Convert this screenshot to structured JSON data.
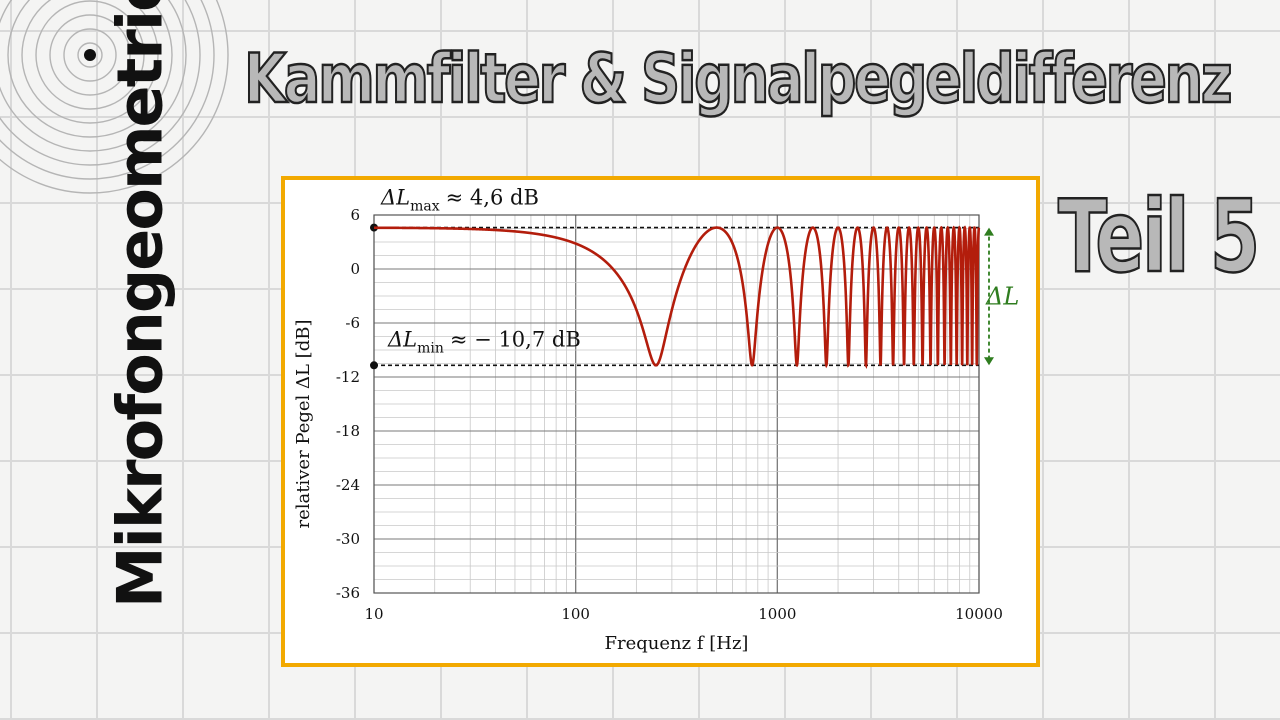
{
  "brand": "Mikrofongeometrie",
  "title": "Kammfilter & Signalpegeldifferenz",
  "part": "Teil 5",
  "colors": {
    "curve": "#b31d0c",
    "frame": "#f2a900",
    "delta": "#2f7d1f"
  },
  "icons": {
    "logo": "concentric-rings-icon"
  },
  "chart_data": {
    "type": "line",
    "xlabel": "Frequenz f [Hz]",
    "ylabel": "relativer Pegel ΔL [dB]",
    "xscale": "log",
    "xlim": [
      10,
      10000
    ],
    "ylim": [
      -36,
      6
    ],
    "x_ticks": [
      "10",
      "100",
      "1000",
      "10000"
    ],
    "y_ticks": [
      "6",
      "0",
      "-6",
      "-12",
      "-18",
      "-24",
      "-30",
      "-36"
    ],
    "grid": true,
    "series": [
      {
        "model": "comb filter, first notch at 250 Hz, spacing 500 Hz",
        "max_db": 4.6,
        "min_db": -10.7,
        "first_notch_hz": 250
      }
    ],
    "annotations": {
      "max": {
        "sym": "ΔL",
        "sub": "max",
        "text": "≈ 4,6 dB",
        "value": 4.6
      },
      "min": {
        "sym": "ΔL",
        "sub": "min",
        "text": "≈ − 10,7 dB",
        "value": -10.7
      },
      "range": "ΔL"
    }
  }
}
